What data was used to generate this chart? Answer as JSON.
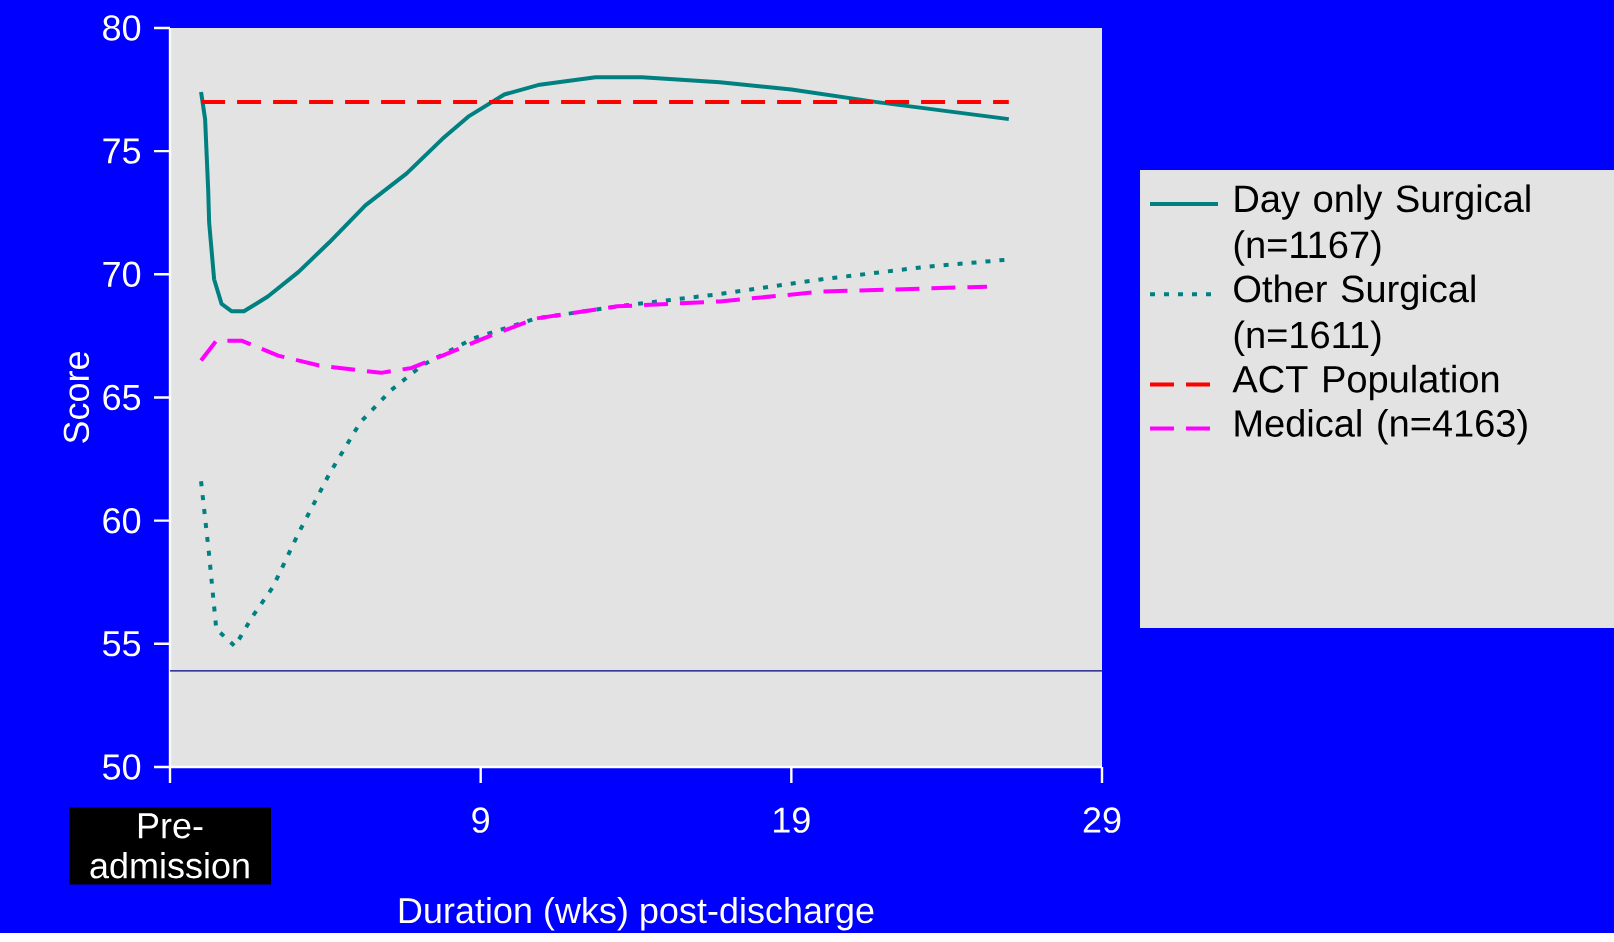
{
  "chart_data": {
    "type": "line",
    "xlabel": "Duration (wks) post-discharge",
    "ylabel": "Score",
    "xlim": [
      -1,
      29
    ],
    "xticks": [
      {
        "value": -1,
        "label": "Pre-admission"
      },
      9,
      19,
      29
    ],
    "ylim": [
      50,
      80
    ],
    "yticks": [
      50,
      55,
      60,
      65,
      70,
      75,
      80
    ],
    "grid": false,
    "legend": "right",
    "marker": "none",
    "ref_lines": [
      {
        "axis": "y",
        "value": 53.9,
        "label": null,
        "color": "#000080",
        "line_style": "solid"
      }
    ],
    "series": [
      {
        "name": "Day only Surgical (n=1167)",
        "color": "#008080",
        "line_style": "solid",
        "x": [
          0,
          0.13,
          0.23,
          0.26,
          0.42,
          0.66,
          0.99,
          1.38,
          2.15,
          3.14,
          4.13,
          5.29,
          6.62,
          7.77,
          8.6,
          9.76,
          10.9,
          12.7,
          14.2,
          16.7,
          19.0,
          21.7,
          26.0
        ],
        "values": [
          77.4,
          76.3,
          73.4,
          72.1,
          69.8,
          68.8,
          68.5,
          68.5,
          69.1,
          70.1,
          71.3,
          72.8,
          74.1,
          75.5,
          76.4,
          77.3,
          77.7,
          78.0,
          78.0,
          77.8,
          77.5,
          77.0,
          76.3
        ]
      },
      {
        "name": "Other Surgical (n=1611)",
        "color": "#008080",
        "line_style": "dotted",
        "x": [
          0,
          0.26,
          0.49,
          1.09,
          1.65,
          2.31,
          3.14,
          4.13,
          5.13,
          6.12,
          7.11,
          8.77,
          10.75,
          13.4,
          16.7,
          20.0,
          23.3,
          26.0
        ],
        "values": [
          61.6,
          58.6,
          55.6,
          54.9,
          56.1,
          57.3,
          59.5,
          61.9,
          64.0,
          65.3,
          66.3,
          67.4,
          68.2,
          68.7,
          69.2,
          69.8,
          70.3,
          70.6
        ]
      },
      {
        "name": "ACT Population",
        "color": "#ff0000",
        "line_style": "dashed",
        "x": [
          0,
          26.0
        ],
        "values": [
          77,
          77
        ]
      },
      {
        "name": "Medical (n=4163)",
        "color": "#ff00ff",
        "line_style": "dashed",
        "x": [
          0,
          0.49,
          1.32,
          2.48,
          3.8,
          5.79,
          6.78,
          7.77,
          9.1,
          10.75,
          13.4,
          16.7,
          20.0,
          25.3
        ],
        "values": [
          66.5,
          67.3,
          67.3,
          66.7,
          66.3,
          66.0,
          66.2,
          66.7,
          67.4,
          68.2,
          68.7,
          68.9,
          69.3,
          69.5
        ]
      }
    ]
  }
}
